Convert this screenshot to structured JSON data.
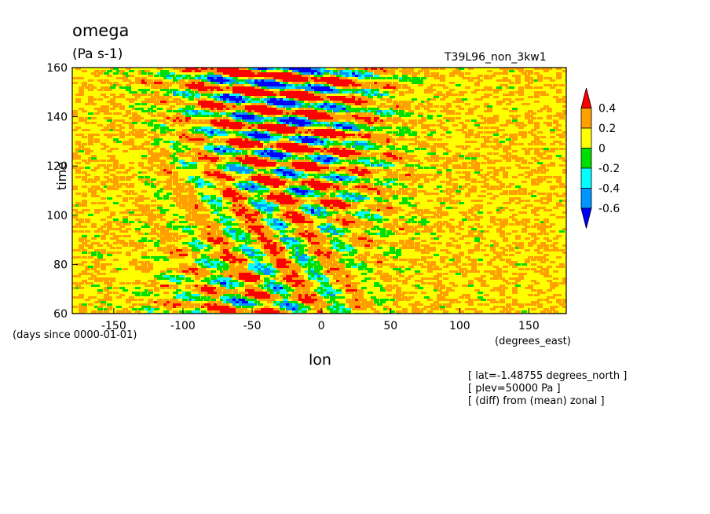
{
  "chart_data": {
    "type": "heatmap",
    "title": "omega",
    "units": "(Pa s-1)",
    "run_label": "T39L96_non_3kw1",
    "xlabel": "lon",
    "ylabel": "time",
    "x_units": "(degrees_east)",
    "y_units": "(days since 0000-01-01)",
    "xlim": [
      -180,
      177
    ],
    "ylim": [
      60,
      160
    ],
    "x_ticks": [
      "-150",
      "-100",
      "-50",
      "0",
      "50",
      "100",
      "150"
    ],
    "y_ticks": [
      "60",
      "80",
      "100",
      "120",
      "140",
      "160"
    ],
    "color_levels": [
      {
        "label": "",
        "color": "#ff0000"
      },
      {
        "label": "0.4",
        "color": "#ff9f00"
      },
      {
        "label": "0.2",
        "color": "#ffff00"
      },
      {
        "label": "0",
        "color": "#00dd00"
      },
      {
        "label": "-0.2",
        "color": "#00ffff"
      },
      {
        "label": "-0.4",
        "color": "#0095ff"
      },
      {
        "label": "-0.6",
        "color": "#0000ff"
      }
    ],
    "notes": [
      "[ lat=-1.48755 degrees_north ]",
      "[ plev=50000 Pa ]",
      "[ (diff) from (mean) zonal ]"
    ],
    "grid": false,
    "legend": "right colorbar"
  }
}
